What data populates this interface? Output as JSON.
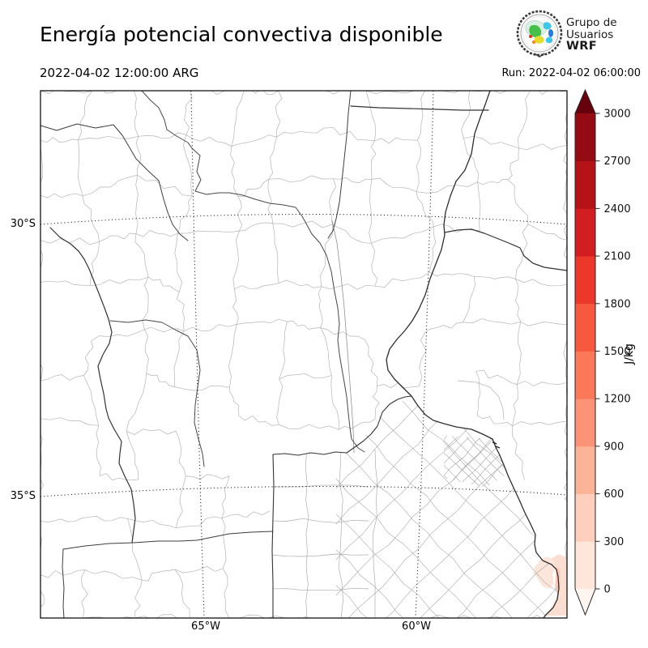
{
  "header": {
    "title": "Energía potencial convectiva disponible",
    "valid_time": "2022-04-02 12:00:00 ARG",
    "run_label": "Run: 2022-04-02 06:00:00"
  },
  "logo": {
    "line1": "Grupo de",
    "line2": "Usuarios",
    "line3": "WRF"
  },
  "map": {
    "lat_ticks": [
      {
        "label": "30°S"
      },
      {
        "label": "35°S"
      }
    ],
    "lon_ticks": [
      {
        "label": "65°W"
      },
      {
        "label": "60°W"
      }
    ]
  },
  "colorbar": {
    "unit": "J/kg",
    "ticks": [
      "0",
      "300",
      "600",
      "900",
      "1200",
      "1500",
      "1800",
      "2100",
      "2400",
      "2700",
      "3000"
    ],
    "colors": [
      "#fff5f0",
      "#fee6da",
      "#fdcfbc",
      "#fcb498",
      "#fc9276",
      "#fb7959",
      "#f7593f",
      "#ec382b",
      "#d21e20",
      "#b61319",
      "#940b13",
      "#67000d"
    ],
    "outline": "#262626"
  },
  "chart_data": {
    "type": "map",
    "title": "Energía potencial convectiva disponible",
    "variable": "CAPE (convective available potential energy)",
    "units": "J/kg",
    "valid_time": "2022-04-02 12:00:00 ARG",
    "model_run": "Run: 2022-04-02 06:00:00",
    "lat_gridlines": [
      "30°S",
      "35°S"
    ],
    "lon_gridlines": [
      "65°W",
      "60°W"
    ],
    "levels": [
      0,
      300,
      600,
      900,
      1200,
      1500,
      1800,
      2100,
      2400,
      2700,
      3000
    ],
    "palette": [
      "#fff5f0",
      "#fee6da",
      "#fdcfbc",
      "#fcb498",
      "#fc9276",
      "#fb7959",
      "#f7593f",
      "#ec382b",
      "#d21e20",
      "#b61319",
      "#940b13",
      "#67000d"
    ],
    "colorbar_extend": "both",
    "observed_field": [
      {
        "area": "offshore/coastal southeastern Buenos Aires (~57.5°W, 38°S)",
        "cape_jkg": "0-600 (pale pink maximum)"
      },
      {
        "area": "rest of domain (central-northern Argentina)",
        "cape_jkg": "below lowest contour (white)"
      }
    ]
  }
}
